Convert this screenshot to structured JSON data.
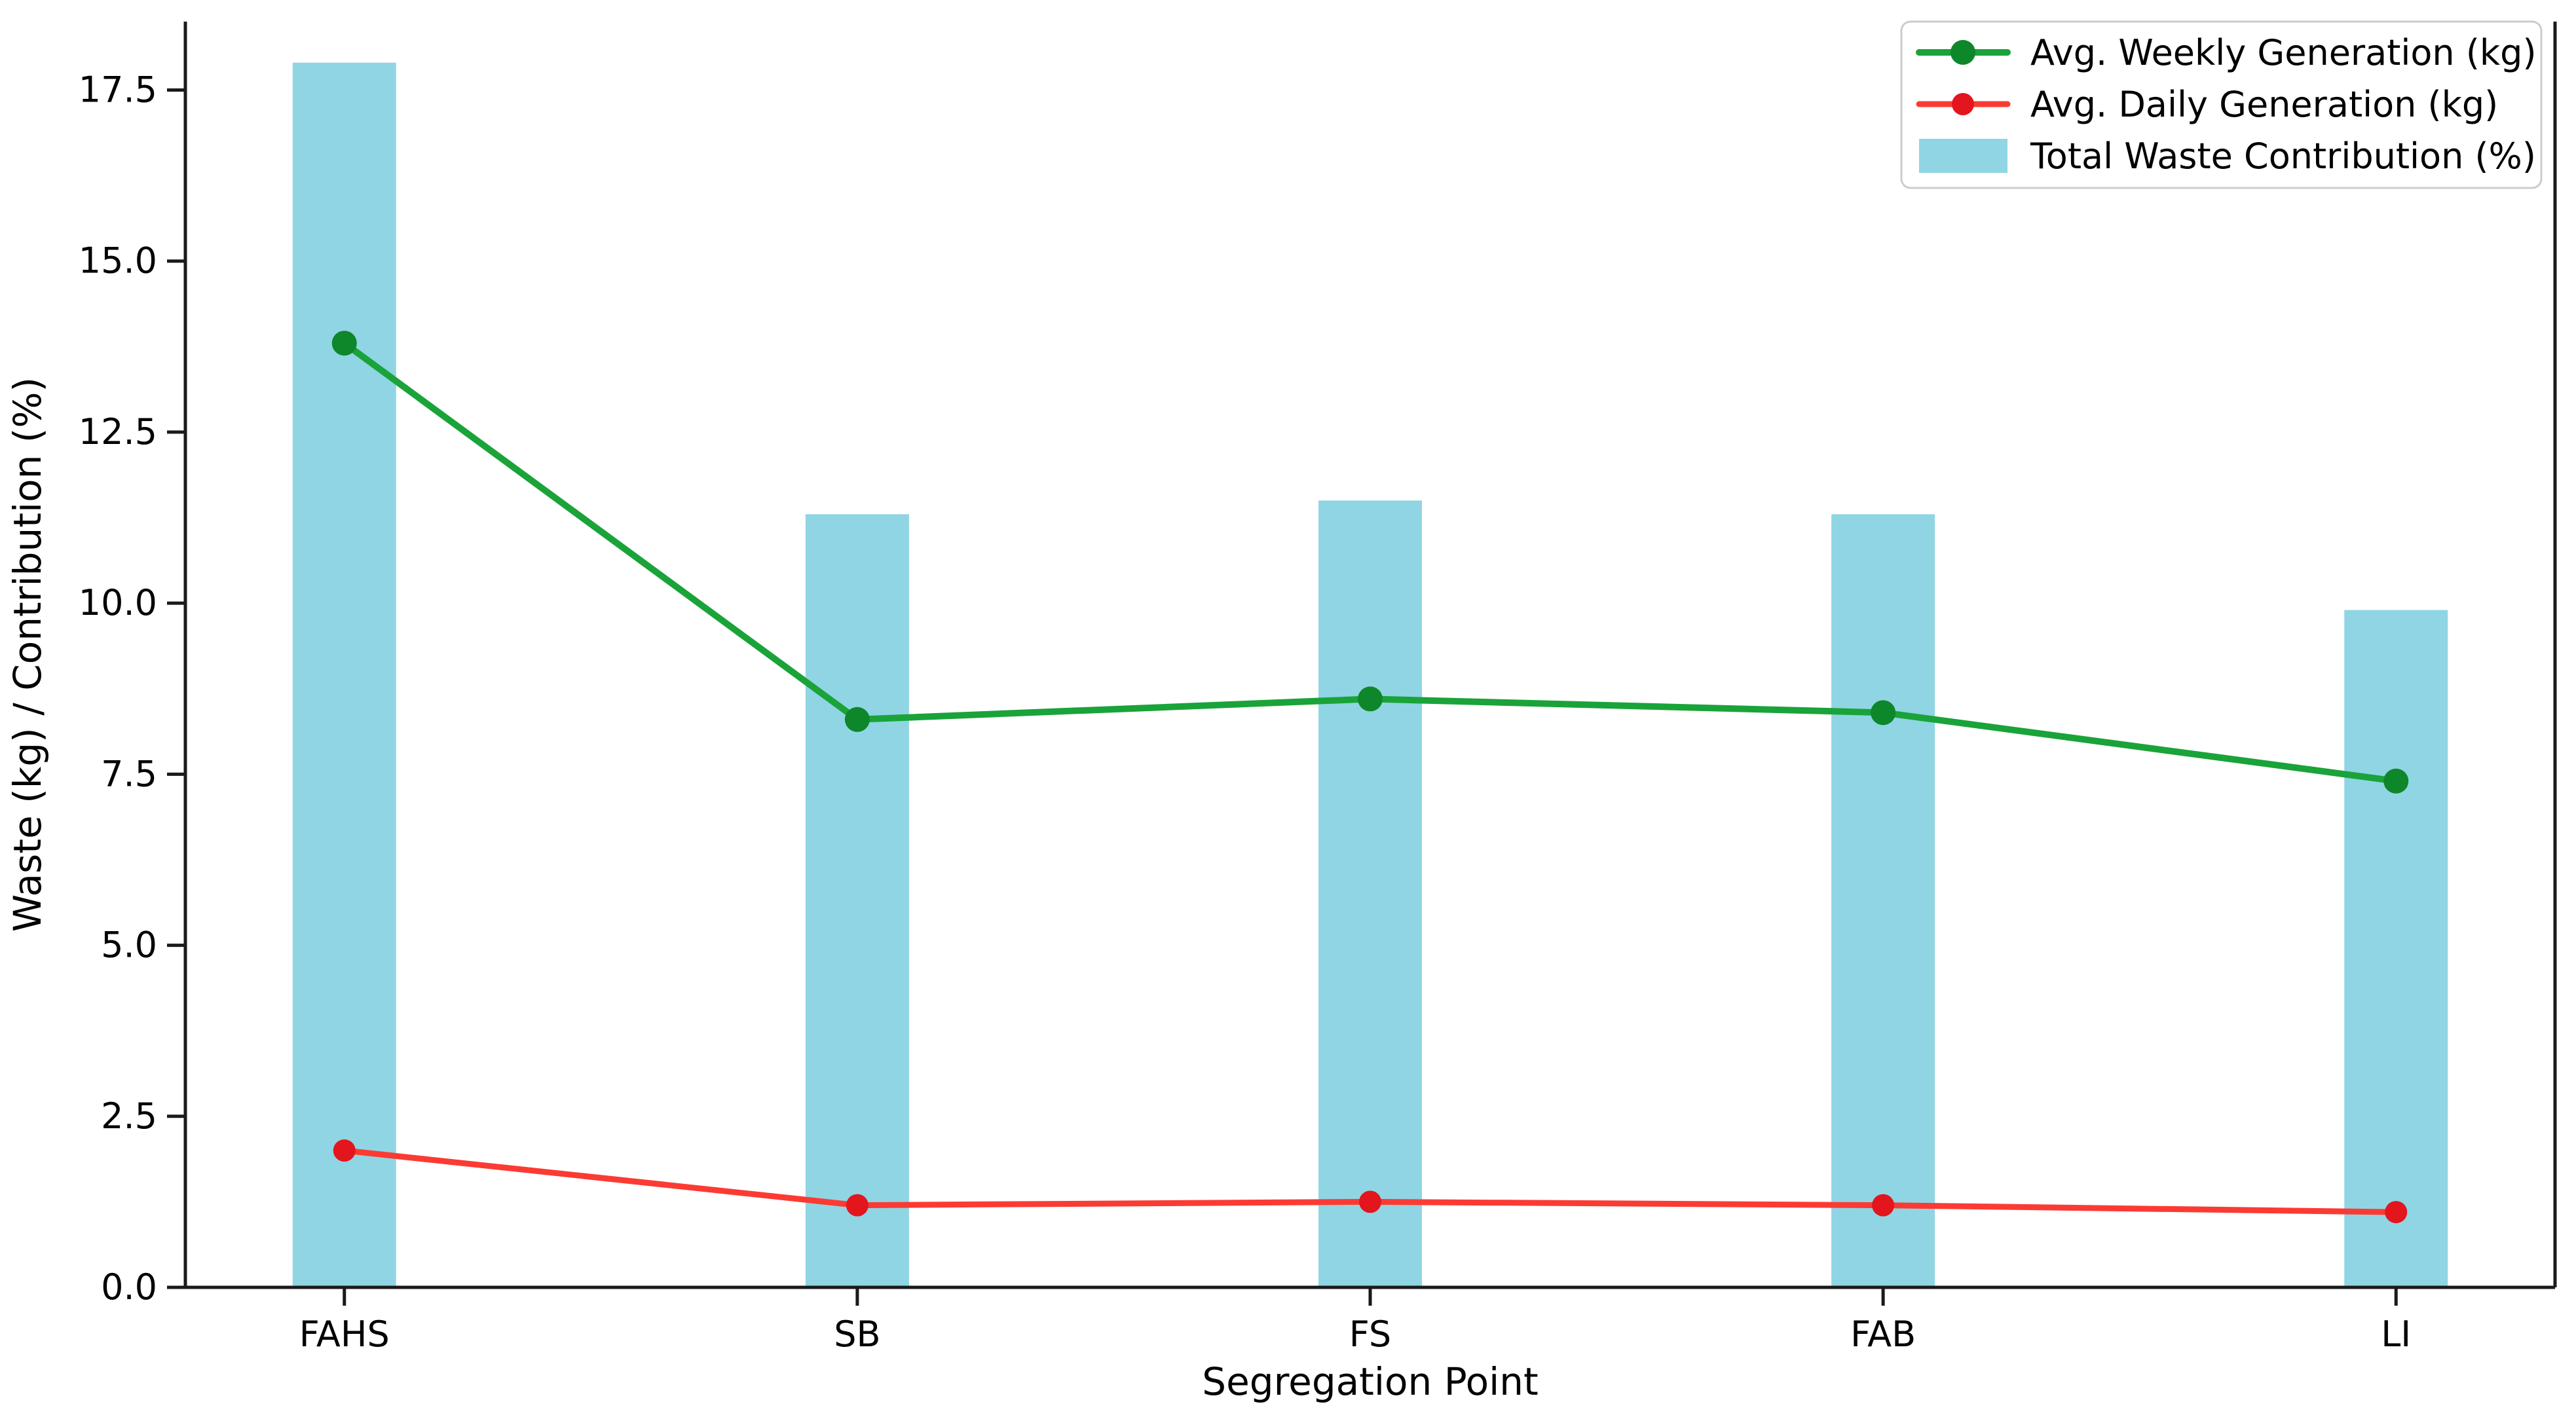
{
  "chart_data": {
    "type": "bar",
    "title": "",
    "xlabel": "Segregation Point",
    "ylabel": "Waste (kg) / Contribution (%)",
    "categories": [
      "FAHS",
      "SB",
      "FS",
      "FAB",
      "LI"
    ],
    "ylim": [
      0,
      18.5
    ],
    "yticks": [
      0.0,
      2.5,
      5.0,
      7.5,
      10.0,
      12.5,
      15.0,
      17.5
    ],
    "ytick_labels": [
      "0.0",
      "2.5",
      "5.0",
      "7.5",
      "10.0",
      "12.5",
      "15.0",
      "17.5"
    ],
    "grid": false,
    "legend_position": "upper right",
    "series": [
      {
        "name": "Avg. Weekly Generation (kg)",
        "type": "line",
        "color": "#1aa339",
        "marker_color": "#0e862a",
        "values": [
          13.8,
          8.3,
          8.6,
          8.4,
          7.4
        ]
      },
      {
        "name": "Avg. Daily Generation (kg)",
        "type": "line",
        "color": "#fb3b33",
        "marker_color": "#e3151d",
        "values": [
          2.0,
          1.2,
          1.25,
          1.2,
          1.1
        ]
      },
      {
        "name": "Total Waste Contribution (%)",
        "type": "bar",
        "color": "#90d5e4",
        "values": [
          17.9,
          11.3,
          11.5,
          11.3,
          9.9
        ]
      }
    ],
    "style": {
      "spine_color": "#1a1a1a",
      "text_color": "#000000",
      "legend_border": "#cccccc",
      "legend_background": "#ffffff"
    }
  }
}
